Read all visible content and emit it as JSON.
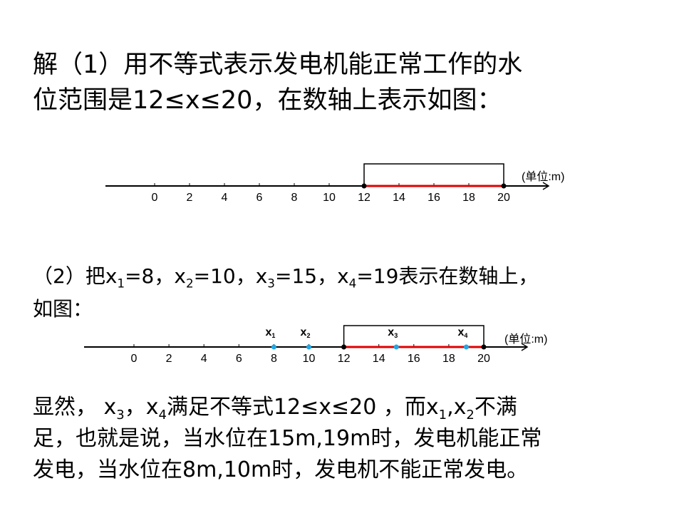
{
  "part1": {
    "lines": [
      "解（1）用不等式表示发电机能正常工作的水",
      "位范围是12≤x≤20，在数轴上表示如图："
    ]
  },
  "number_line_1": {
    "ticks": [
      0,
      2,
      4,
      6,
      8,
      10,
      12,
      14,
      16,
      18,
      20
    ],
    "range": [
      12,
      20
    ],
    "unit": "(单位:m)"
  },
  "part2": {
    "lines": [
      [
        "（2）把x",
        "1",
        "=8，x",
        "2",
        "=10，x",
        "3",
        "=15，x",
        "4",
        "=19表示在数轴上，"
      ],
      [
        "如图："
      ]
    ]
  },
  "number_line_2": {
    "ticks": [
      0,
      2,
      4,
      6,
      8,
      10,
      12,
      14,
      16,
      18,
      20
    ],
    "range": [
      12,
      20
    ],
    "unit": "(单位:m)",
    "points": [
      {
        "label": [
          "x",
          "1"
        ],
        "value": 8
      },
      {
        "label": [
          "x",
          "2"
        ],
        "value": 10
      },
      {
        "label": [
          "x",
          "3"
        ],
        "value": 15
      },
      {
        "label": [
          "x",
          "4"
        ],
        "value": 19
      }
    ]
  },
  "part3": {
    "lines": [
      [
        "显然，  x",
        "3",
        "，x",
        "4",
        "满足不等式12≤x≤20 ，而x",
        "1",
        ",x",
        "2",
        "不满"
      ],
      [
        "足，也就是说，当水位在15m,19m时，发电机能正常"
      ],
      [
        "发电，当水位在8m,10m时，发电机不能正常发电。"
      ]
    ]
  }
}
